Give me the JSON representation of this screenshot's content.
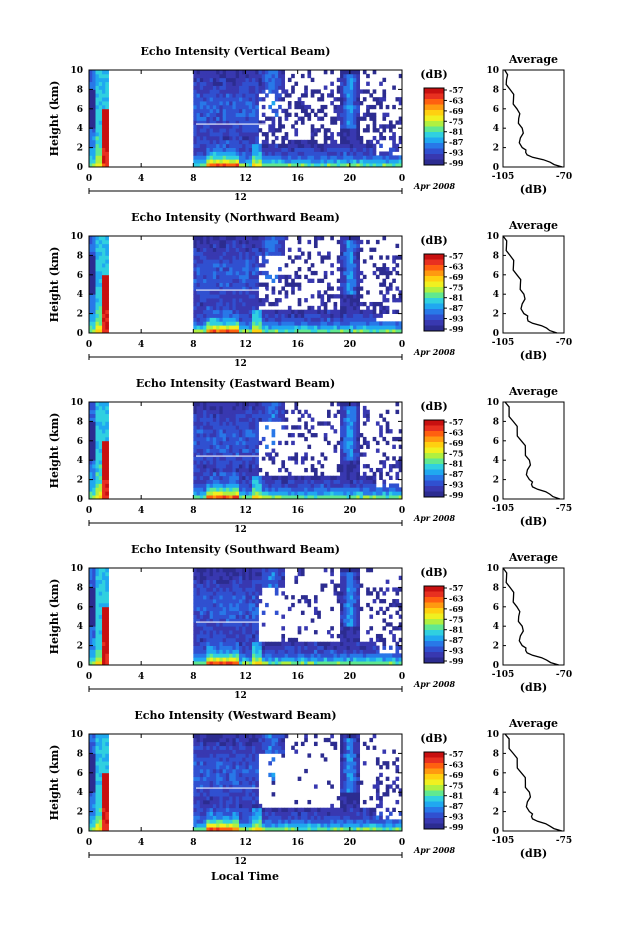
{
  "colorbar": {
    "label": "(dB)",
    "ticks": [
      "-57",
      "-63",
      "-69",
      "-75",
      "-81",
      "-87",
      "-93",
      "-99"
    ],
    "colors": [
      "#c81010",
      "#e83020",
      "#ff6010",
      "#ff9a10",
      "#ffd010",
      "#f0f020",
      "#b0f040",
      "#60e890",
      "#30d0e0",
      "#20a8f0",
      "#2878e8",
      "#3050d0",
      "#3838b0",
      "#2c2c90"
    ]
  },
  "bottom_xlabel": "Local Time",
  "chart_data": [
    {
      "type": "heatmap",
      "title": "Echo Intensity (Vertical Beam)",
      "ylabel": "Height (km)",
      "yticks": [
        "0",
        "2",
        "4",
        "6",
        "8",
        "10"
      ],
      "xticks": [
        "0",
        "4",
        "8",
        "12",
        "16",
        "20",
        "0"
      ],
      "date_tick": "12",
      "date_label": "Apr 2008",
      "xlim": [
        0,
        24
      ],
      "ylim": [
        0,
        10
      ],
      "z_unit": "dB",
      "zlim": [
        -99,
        -57
      ],
      "data_gap_hours": [
        1.5,
        8
      ],
      "profile": {
        "title": "Average",
        "xlabel": "(dB)",
        "xticks": [
          "-105",
          "-70"
        ],
        "yticks": [
          "0",
          "2",
          "4",
          "6",
          "8",
          "10"
        ],
        "xlim": [
          -105,
          -70
        ],
        "ylim": [
          0,
          10
        ],
        "height": [
          0,
          0.5,
          1,
          1.5,
          2,
          3,
          4,
          5,
          6,
          7,
          8,
          9,
          10
        ],
        "value": [
          -71,
          -78,
          -88,
          -92,
          -94,
          -95,
          -94,
          -96,
          -97,
          -99,
          -101,
          -103,
          -104
        ]
      }
    },
    {
      "type": "heatmap",
      "title": "Echo Intensity (Northward Beam)",
      "ylabel": "Height (km)",
      "yticks": [
        "0",
        "2",
        "4",
        "6",
        "8",
        "10"
      ],
      "xticks": [
        "0",
        "4",
        "8",
        "12",
        "16",
        "20",
        "0"
      ],
      "date_tick": "12",
      "date_label": "Apr 2008",
      "xlim": [
        0,
        24
      ],
      "ylim": [
        0,
        10
      ],
      "z_unit": "dB",
      "zlim": [
        -99,
        -57
      ],
      "data_gap_hours": [
        1.5,
        8
      ],
      "profile": {
        "title": "Average",
        "xlabel": "(dB)",
        "xticks": [
          "-105",
          "-70"
        ],
        "yticks": [
          "0",
          "2",
          "4",
          "6",
          "8",
          "10"
        ],
        "xlim": [
          -105,
          -70
        ],
        "ylim": [
          0,
          10
        ],
        "height": [
          0,
          0.5,
          1,
          1.5,
          2,
          3,
          4,
          5,
          6,
          7,
          8,
          9,
          10
        ],
        "value": [
          -74,
          -80,
          -88,
          -91,
          -93,
          -94,
          -93,
          -95,
          -97,
          -99,
          -101,
          -103,
          -105
        ]
      }
    },
    {
      "type": "heatmap",
      "title": "Echo Intensity (Eastward Beam)",
      "ylabel": "Height (km)",
      "yticks": [
        "0",
        "2",
        "4",
        "6",
        "8",
        "10"
      ],
      "xticks": [
        "0",
        "4",
        "8",
        "12",
        "16",
        "20",
        "0"
      ],
      "date_tick": "12",
      "date_label": "Apr 2008",
      "xlim": [
        0,
        24
      ],
      "ylim": [
        0,
        10
      ],
      "z_unit": "dB",
      "zlim": [
        -99,
        -57
      ],
      "data_gap_hours": [
        1.5,
        8
      ],
      "profile": {
        "title": "Average",
        "xlabel": "(dB)",
        "xticks": [
          "-105",
          "-75"
        ],
        "yticks": [
          "0",
          "2",
          "4",
          "6",
          "8",
          "10"
        ],
        "xlim": [
          -105,
          -75
        ],
        "ylim": [
          0,
          10
        ],
        "height": [
          0,
          0.5,
          1,
          1.5,
          2,
          3,
          4,
          5,
          6,
          7,
          8,
          9,
          10
        ],
        "value": [
          -77,
          -82,
          -88,
          -91,
          -92,
          -93,
          -92,
          -94,
          -96,
          -98,
          -100,
          -102,
          -104
        ]
      }
    },
    {
      "type": "heatmap",
      "title": "Echo Intensity (Southward Beam)",
      "ylabel": "Height (km)",
      "yticks": [
        "0",
        "2",
        "4",
        "6",
        "8",
        "10"
      ],
      "xticks": [
        "0",
        "4",
        "8",
        "12",
        "16",
        "20",
        "0"
      ],
      "date_tick": "12",
      "date_label": "Apr 2008",
      "xlim": [
        0,
        24
      ],
      "ylim": [
        0,
        10
      ],
      "z_unit": "dB",
      "zlim": [
        -99,
        -57
      ],
      "data_gap_hours": [
        1.5,
        8
      ],
      "profile": {
        "title": "Average",
        "xlabel": "(dB)",
        "xticks": [
          "-105",
          "-70"
        ],
        "yticks": [
          "0",
          "2",
          "4",
          "6",
          "8",
          "10"
        ],
        "xlim": [
          -105,
          -70
        ],
        "ylim": [
          0,
          10
        ],
        "height": [
          0,
          0.5,
          1,
          1.5,
          2,
          3,
          4,
          5,
          6,
          7,
          8,
          9,
          10
        ],
        "value": [
          -73,
          -80,
          -88,
          -92,
          -94,
          -95,
          -94,
          -96,
          -97,
          -99,
          -101,
          -103,
          -105
        ]
      }
    },
    {
      "type": "heatmap",
      "title": "Echo Intensity (Westward Beam)",
      "ylabel": "Height (km)",
      "yticks": [
        "0",
        "2",
        "4",
        "6",
        "8",
        "10"
      ],
      "xticks": [
        "0",
        "4",
        "8",
        "12",
        "16",
        "20",
        "0"
      ],
      "date_tick": "12",
      "date_label": "Apr 2008",
      "xlim": [
        0,
        24
      ],
      "ylim": [
        0,
        10
      ],
      "z_unit": "dB",
      "zlim": [
        -99,
        -57
      ],
      "data_gap_hours": [
        1.5,
        8
      ],
      "profile": {
        "title": "Average",
        "xlabel": "(dB)",
        "xticks": [
          "-105",
          "-75"
        ],
        "yticks": [
          "0",
          "2",
          "4",
          "6",
          "8",
          "10"
        ],
        "xlim": [
          -105,
          -75
        ],
        "ylim": [
          0,
          10
        ],
        "height": [
          0,
          0.5,
          1,
          1.5,
          2,
          3,
          4,
          5,
          6,
          7,
          8,
          9,
          10
        ],
        "value": [
          -76,
          -82,
          -88,
          -91,
          -92,
          -93,
          -92,
          -94,
          -96,
          -98,
          -100,
          -102,
          -104
        ]
      }
    }
  ]
}
